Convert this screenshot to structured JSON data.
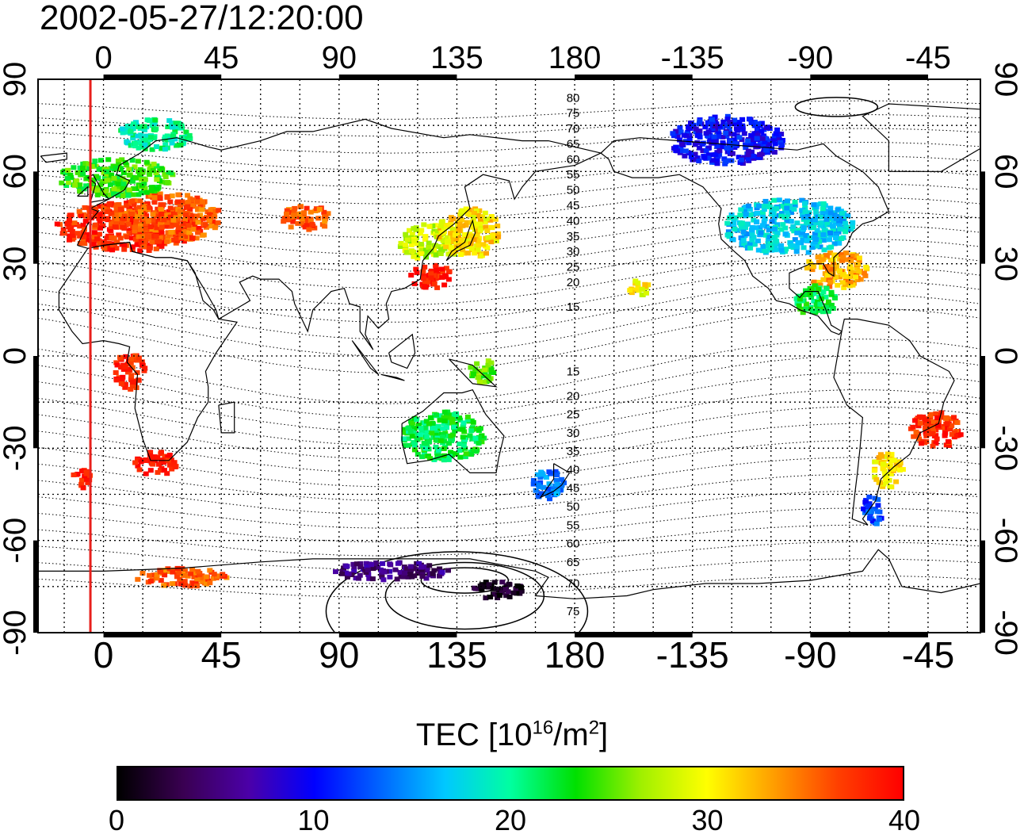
{
  "title": "2002-05-27/12:20:00",
  "map": {
    "x_ticks_top": [
      "0",
      "45",
      "90",
      "135",
      "180",
      "-135",
      "-90",
      "-45"
    ],
    "x_ticks_bottom": [
      "0",
      "45",
      "90",
      "135",
      "180",
      "-135",
      "-90",
      "-45"
    ],
    "y_ticks": [
      "90",
      "60",
      "30",
      "0",
      "-30",
      "-60",
      "-90"
    ],
    "lat_ticks": [
      90,
      60,
      30,
      0,
      -30,
      -60,
      -90
    ],
    "lon_ticks": [
      0,
      45,
      90,
      135,
      180,
      225,
      270,
      315
    ],
    "lon_range": [
      -25,
      335
    ],
    "lat_range": [
      -90,
      90
    ],
    "grid": true,
    "terminator_longitude": -5,
    "terminator_color": "#e8201c",
    "maglat_labels_north": [
      "80",
      "75",
      "70",
      "65",
      "60",
      "55",
      "50",
      "45",
      "40",
      "35",
      "30",
      "25",
      "20",
      "15"
    ],
    "maglat_labels_south": [
      "15",
      "20",
      "25",
      "30",
      "35",
      "40",
      "45",
      "50",
      "55",
      "60",
      "65",
      "70",
      "75"
    ]
  },
  "colorbar": {
    "title_prefix": "TEC  [10",
    "title_exp": "16",
    "title_unit": "/m",
    "title_unit_exp": "2",
    "title_suffix": "]",
    "min": 0,
    "max": 40,
    "tick_values": [
      0,
      10,
      20,
      30,
      40
    ],
    "tick_labels": [
      "0",
      "10",
      "20",
      "30",
      "40"
    ],
    "colors": [
      "#000000",
      "#3a0052",
      "#4b00a8",
      "#0000ff",
      "#0064ff",
      "#00c8ff",
      "#00ffa0",
      "#00e000",
      "#a0f000",
      "#ffff00",
      "#ffa000",
      "#ff4000",
      "#ff0000"
    ]
  },
  "tec_clusters": [
    {
      "lon": 10,
      "lat": 42,
      "rlon": 28,
      "rlat": 8,
      "tec": 38
    },
    {
      "lon": 25,
      "lat": 45,
      "rlon": 20,
      "rlat": 8,
      "tec": 36
    },
    {
      "lon": 5,
      "lat": 58,
      "rlon": 22,
      "rlat": 6,
      "tec": 24
    },
    {
      "lon": 20,
      "lat": 72,
      "rlon": 14,
      "rlat": 5,
      "tec": 20
    },
    {
      "lon": 78,
      "lat": 45,
      "rlon": 10,
      "rlat": 4,
      "tec": 36
    },
    {
      "lon": 125,
      "lat": 37,
      "rlon": 12,
      "rlat": 6,
      "tec": 28
    },
    {
      "lon": 140,
      "lat": 40,
      "rlon": 12,
      "rlat": 8,
      "tec": 31
    },
    {
      "lon": 125,
      "lat": 26,
      "rlon": 8,
      "rlat": 4,
      "tec": 39
    },
    {
      "lon": 238,
      "lat": 70,
      "rlon": 22,
      "rlat": 8,
      "tec": 10
    },
    {
      "lon": 262,
      "lat": 42,
      "rlon": 25,
      "rlat": 9,
      "tec": 17
    },
    {
      "lon": 280,
      "lat": 28,
      "rlon": 12,
      "rlat": 6,
      "tec": 33
    },
    {
      "lon": 272,
      "lat": 18,
      "rlon": 8,
      "rlat": 5,
      "tec": 22
    },
    {
      "lon": 318,
      "lat": -24,
      "rlon": 10,
      "rlat": 6,
      "tec": 38
    },
    {
      "lon": 300,
      "lat": -37,
      "rlon": 6,
      "rlat": 6,
      "tec": 31
    },
    {
      "lon": 294,
      "lat": -50,
      "rlon": 4,
      "rlat": 5,
      "tec": 12
    },
    {
      "lon": 20,
      "lat": -35,
      "rlon": 8,
      "rlat": 4,
      "tec": 39
    },
    {
      "lon": -8,
      "lat": -40,
      "rlon": 4,
      "rlat": 3,
      "tec": 39
    },
    {
      "lon": 10,
      "lat": -5,
      "rlon": 6,
      "rlat": 6,
      "tec": 38
    },
    {
      "lon": 130,
      "lat": -26,
      "rlon": 16,
      "rlat": 8,
      "tec": 22
    },
    {
      "lon": 170,
      "lat": -42,
      "rlon": 6,
      "rlat": 5,
      "tec": 14
    },
    {
      "lon": 145,
      "lat": -5,
      "rlon": 5,
      "rlat": 4,
      "tec": 25
    },
    {
      "lon": 150,
      "lat": -76,
      "rlon": 10,
      "rlat": 3,
      "tec": 1
    },
    {
      "lon": 110,
      "lat": -70,
      "rlon": 22,
      "rlat": 3,
      "tec": 5
    },
    {
      "lon": 30,
      "lat": -72,
      "rlon": 18,
      "rlat": 3,
      "tec": 36
    },
    {
      "lon": 205,
      "lat": 22,
      "rlon": 4,
      "rlat": 3,
      "tec": 30
    }
  ]
}
